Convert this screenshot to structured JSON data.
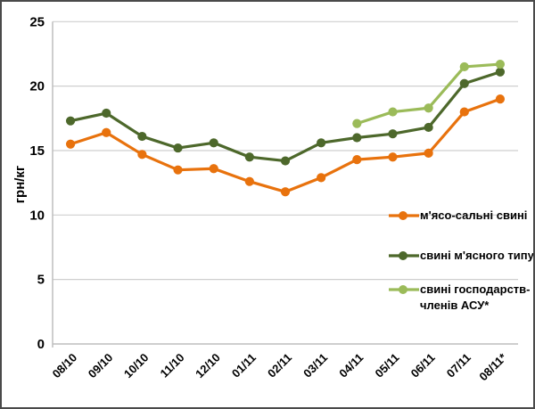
{
  "chart_data": {
    "type": "line",
    "title": "",
    "xlabel": "",
    "ylabel": "грн/кг",
    "ylim": [
      0,
      25
    ],
    "ytick_interval": 5,
    "grid": true,
    "legend_position": "inside-right",
    "categories": [
      "08/10",
      "09/10",
      "10/10",
      "11/10",
      "12/10",
      "01/11",
      "02/11",
      "03/11",
      "04/11",
      "05/11",
      "06/11",
      "07/11",
      "08/11*"
    ],
    "series": [
      {
        "name": "м'ясо-сальні свині",
        "color": "#E8720D",
        "values": [
          15.5,
          16.4,
          14.7,
          13.5,
          13.6,
          12.6,
          11.8,
          12.9,
          14.3,
          14.5,
          14.8,
          18.0,
          19.0
        ]
      },
      {
        "name": "свині м'ясного типу",
        "color": "#4D682B",
        "values": [
          17.3,
          17.9,
          16.1,
          15.2,
          15.6,
          14.5,
          14.2,
          15.6,
          16.0,
          16.3,
          16.8,
          20.2,
          21.1
        ]
      },
      {
        "name": "свині господарств-членів АСУ*",
        "color": "#9BBB59",
        "values": [
          null,
          null,
          null,
          null,
          null,
          null,
          null,
          null,
          17.1,
          18.0,
          18.3,
          21.5,
          21.7
        ]
      }
    ]
  },
  "axes": {
    "y_title": "грн/кг",
    "y_ticks": [
      "0",
      "5",
      "10",
      "15",
      "20",
      "25"
    ]
  },
  "legend": {
    "items": [
      {
        "label": "м'ясо-сальні свині",
        "color": "#E8720D"
      },
      {
        "label": "свині м'ясного типу",
        "color": "#4D682B"
      },
      {
        "label": "свині господарств-\nчленів АСУ*",
        "color": "#9BBB59"
      }
    ]
  },
  "colors": {
    "background": "#FFFFFF",
    "border": "#4A4A4A",
    "gridline": "#CFCFCF",
    "axis_line": "#BDBDBD",
    "text": "#000000"
  }
}
